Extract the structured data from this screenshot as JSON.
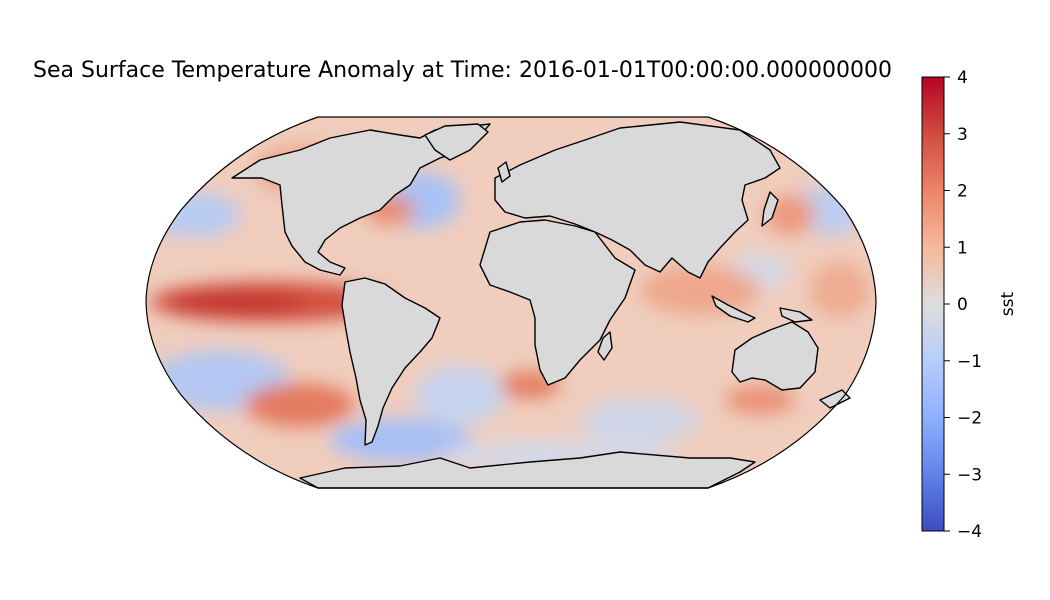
{
  "title": "Sea Surface Temperature Anomaly at Time: 2016-01-01T00:00:00.000000000",
  "map": {
    "projection": "robinson",
    "land_color": "#d9d9d9",
    "ocean_field": "sst anomaly"
  },
  "colorbar": {
    "label": "sst",
    "colormap": "coolwarm",
    "vmin": -4,
    "vmax": 4,
    "ticks": [
      "4",
      "3",
      "2",
      "1",
      "0",
      "−1",
      "−2",
      "−3",
      "−4"
    ],
    "colors": {
      "low": "#3b4cc0",
      "mid": "#dddddd",
      "high": "#b40426"
    }
  }
}
